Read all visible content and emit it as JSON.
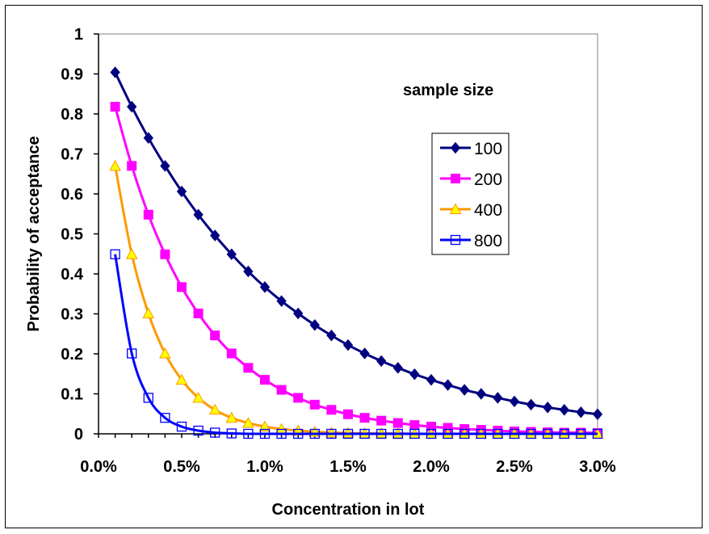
{
  "chart_data": {
    "type": "line",
    "title": "",
    "xlabel": "Concentration in lot",
    "ylabel": "Probability of acceptance",
    "xlim": [
      0.0,
      3.0
    ],
    "ylim": [
      0,
      1
    ],
    "x_ticks": [
      0.0,
      0.5,
      1.0,
      1.5,
      2.0,
      2.5,
      3.0
    ],
    "x_tick_labels": [
      "0.0%",
      "0.5%",
      "1.0%",
      "1.5%",
      "2.0%",
      "2.5%",
      "3.0%"
    ],
    "y_ticks": [
      0,
      0.1,
      0.2,
      0.3,
      0.4,
      0.5,
      0.6,
      0.7,
      0.8,
      0.9,
      1
    ],
    "y_tick_labels": [
      "0",
      "0.1",
      "0.2",
      "0.3",
      "0.4",
      "0.5",
      "0.6",
      "0.7",
      "0.8",
      "0.9",
      "1"
    ],
    "grid": false,
    "legend_title": "sample size",
    "legend_position": "right",
    "x": [
      0.1,
      0.2,
      0.3,
      0.4,
      0.5,
      0.6,
      0.7,
      0.8,
      0.9,
      1.0,
      1.1,
      1.2,
      1.3,
      1.4,
      1.5,
      1.6,
      1.7,
      1.8,
      1.9,
      2.0,
      2.1,
      2.2,
      2.3,
      2.4,
      2.5,
      2.6,
      2.7,
      2.8,
      2.9,
      3.0
    ],
    "series": [
      {
        "name": "100",
        "color": "#000080",
        "marker": "diamond",
        "values": [
          0.904,
          0.818,
          0.74,
          0.67,
          0.606,
          0.548,
          0.496,
          0.449,
          0.406,
          0.367,
          0.332,
          0.301,
          0.272,
          0.246,
          0.222,
          0.201,
          0.182,
          0.165,
          0.149,
          0.135,
          0.122,
          0.11,
          0.1,
          0.09,
          0.081,
          0.073,
          0.066,
          0.06,
          0.054,
          0.049
        ]
      },
      {
        "name": "200",
        "color": "#FF00FF",
        "marker": "square",
        "values": [
          0.818,
          0.67,
          0.548,
          0.449,
          0.367,
          0.301,
          0.246,
          0.201,
          0.165,
          0.135,
          0.11,
          0.09,
          0.073,
          0.06,
          0.049,
          0.04,
          0.033,
          0.027,
          0.022,
          0.018,
          0.015,
          0.012,
          0.01,
          0.008,
          0.006,
          0.005,
          0.004,
          0.003,
          0.003,
          0.002
        ]
      },
      {
        "name": "400",
        "color": "#FF9900",
        "marker_fill": "#FFFF00",
        "marker": "triangle",
        "values": [
          0.67,
          0.449,
          0.301,
          0.201,
          0.135,
          0.09,
          0.06,
          0.04,
          0.027,
          0.018,
          0.012,
          0.008,
          0.005,
          0.003,
          0.002,
          0.001,
          0.001,
          0.001,
          0.0,
          0.0,
          0.0,
          0.0,
          0.0,
          0.0,
          0.0,
          0.0,
          0.0,
          0.0,
          0.0,
          0.0
        ]
      },
      {
        "name": "800",
        "color": "#0000FF",
        "marker": "open-square",
        "values": [
          0.449,
          0.201,
          0.09,
          0.04,
          0.018,
          0.008,
          0.003,
          0.001,
          0.0,
          0.0,
          0.0,
          0.0,
          0.0,
          0.0,
          0.0,
          0.0,
          0.0,
          0.0,
          0.0,
          0.0,
          0.0,
          0.0,
          0.0,
          0.0,
          0.0,
          0.0,
          0.0,
          0.0,
          0.0,
          0.0
        ]
      }
    ]
  }
}
